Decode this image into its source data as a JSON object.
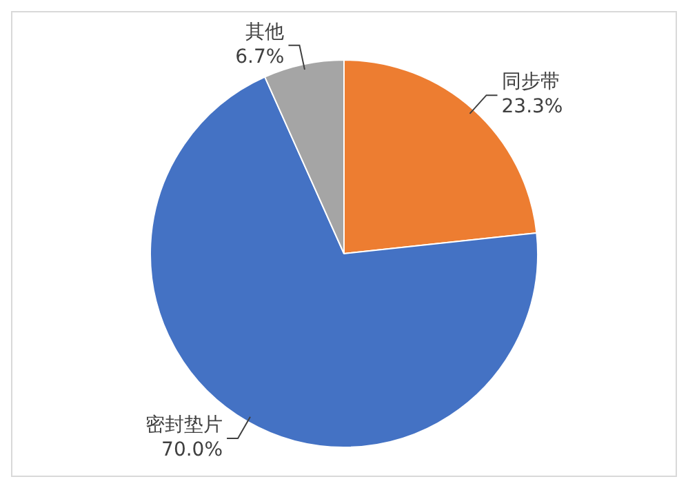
{
  "chart_data": {
    "type": "pie",
    "categories": [
      "同步带",
      "密封垫片",
      "其他"
    ],
    "values": [
      23.3,
      70.0,
      6.7
    ],
    "colors": [
      "#ed7d31",
      "#4472c4",
      "#a5a5a5"
    ],
    "value_labels": [
      "23.3%",
      "70.0%",
      "6.7%"
    ],
    "legend": false
  }
}
